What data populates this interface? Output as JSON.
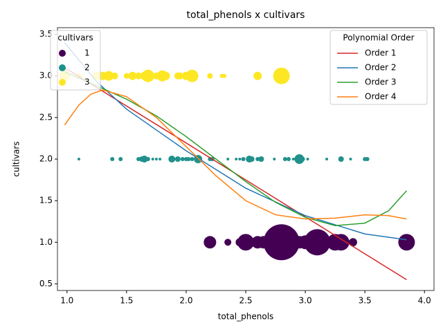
{
  "chart_data": {
    "type": "scatter",
    "title": "total_phenols x cultivars",
    "xlabel": "total_phenols",
    "ylabel": "cultivars",
    "xlim": [
      0.92,
      4.08
    ],
    "ylim": [
      0.42,
      3.58
    ],
    "xticks": [
      {
        "value": 1,
        "label": "1.0"
      },
      {
        "value": 1.5,
        "label": "1.5"
      },
      {
        "value": 2,
        "label": "2.0"
      },
      {
        "value": 2.5,
        "label": "2.5"
      },
      {
        "value": 3,
        "label": "3.0"
      },
      {
        "value": 3.5,
        "label": "3.5"
      },
      {
        "value": 4,
        "label": "4.0"
      }
    ],
    "yticks": [
      {
        "value": 0.5,
        "label": "0.5"
      },
      {
        "value": 1,
        "label": "1.0"
      },
      {
        "value": 1.5,
        "label": "1.5"
      },
      {
        "value": 2,
        "label": "2.0"
      },
      {
        "value": 2.5,
        "label": "2.5"
      },
      {
        "value": 3,
        "label": "3.0"
      },
      {
        "value": 3.5,
        "label": "3.5"
      }
    ],
    "legend_title": "cultivars",
    "series": [
      {
        "name": "1",
        "color": "#440154",
        "x": [
          2.2,
          2.35,
          2.45,
          2.5,
          2.6,
          2.65,
          2.8,
          2.95,
          3.0,
          3.1,
          3.15,
          3.25,
          3.3,
          3.4,
          3.85
        ],
        "values": [
          1,
          1,
          1,
          1,
          1,
          1,
          1,
          1,
          1,
          1,
          1,
          1,
          1,
          1,
          1
        ],
        "sizes": [
          81,
          25,
          36,
          144,
          81,
          81,
          676,
          81,
          100,
          361,
          100,
          144,
          144,
          36,
          144
        ]
      },
      {
        "name": "2",
        "color": "#21918c",
        "x": [
          1.1,
          1.38,
          1.45,
          1.6,
          1.63,
          1.65,
          1.68,
          1.72,
          1.75,
          1.78,
          1.88,
          1.93,
          1.97,
          2.0,
          2.02,
          2.05,
          2.1,
          2.2,
          2.22,
          2.35,
          2.42,
          2.45,
          2.48,
          2.53,
          2.55,
          2.6,
          2.63,
          2.74,
          2.83,
          2.86,
          2.9,
          2.95,
          2.98,
          3.02,
          3.18,
          3.3,
          3.38,
          3.5,
          3.52
        ],
        "values": [
          2,
          2,
          2,
          2,
          2,
          2,
          2,
          2,
          2,
          2,
          2,
          2,
          2,
          2,
          2,
          2,
          2,
          2,
          2,
          2,
          2,
          2,
          2,
          2,
          2,
          2,
          2,
          2,
          2,
          2,
          2,
          2,
          2,
          2,
          2,
          2,
          2,
          2,
          2
        ],
        "sizes": [
          4,
          9,
          9,
          9,
          16,
          25,
          9,
          4,
          4,
          4,
          25,
          16,
          9,
          9,
          9,
          9,
          36,
          9,
          9,
          4,
          4,
          4,
          9,
          25,
          16,
          9,
          16,
          4,
          9,
          9,
          4,
          49,
          9,
          4,
          4,
          16,
          4,
          9,
          9
        ]
      },
      {
        "name": "3",
        "color": "#fde725",
        "x": [
          0.98,
          1.1,
          1.25,
          1.3,
          1.35,
          1.4,
          1.5,
          1.55,
          1.6,
          1.65,
          1.68,
          1.75,
          1.8,
          1.83,
          1.93,
          1.95,
          2.0,
          2.05,
          2.2,
          2.3,
          2.32,
          2.6,
          2.8
        ],
        "values": [
          3,
          3,
          3,
          3,
          3,
          3,
          3,
          3,
          3,
          3,
          3,
          3,
          3,
          3,
          3,
          3,
          3,
          3,
          3,
          3,
          3,
          3,
          3
        ],
        "sizes": [
          64,
          16,
          36,
          36,
          49,
          25,
          16,
          36,
          25,
          36,
          81,
          25,
          64,
          36,
          25,
          25,
          36,
          81,
          16,
          9,
          9,
          36,
          144
        ]
      }
    ],
    "lines_legend_title": "Polynomial Order",
    "lines": [
      {
        "name": "Order 1",
        "color": "#d62728",
        "x": [
          0.98,
          3.85
        ],
        "values": [
          3.1,
          0.55
        ]
      },
      {
        "name": "Order 2",
        "color": "#1f77b4",
        "x": [
          0.98,
          1.25,
          1.5,
          2.0,
          2.5,
          3.0,
          3.5,
          3.85
        ],
        "values": [
          3.4,
          2.93,
          2.6,
          2.1,
          1.65,
          1.32,
          1.1,
          1.03
        ]
      },
      {
        "name": "Order 3",
        "color": "#2ca02c",
        "x": [
          0.98,
          1.25,
          1.5,
          1.75,
          2.0,
          2.25,
          2.5,
          2.75,
          3.0,
          3.25,
          3.5,
          3.7,
          3.85
        ],
        "values": [
          3.05,
          2.88,
          2.72,
          2.52,
          2.27,
          2.0,
          1.73,
          1.48,
          1.3,
          1.2,
          1.23,
          1.38,
          1.62
        ]
      },
      {
        "name": "Order 4",
        "color": "#ff7f0e",
        "x": [
          0.98,
          1.1,
          1.2,
          1.3,
          1.5,
          1.75,
          2.0,
          2.25,
          2.5,
          2.75,
          3.0,
          3.25,
          3.5,
          3.7,
          3.85
        ],
        "values": [
          2.41,
          2.65,
          2.78,
          2.83,
          2.75,
          2.5,
          2.15,
          1.8,
          1.5,
          1.33,
          1.28,
          1.29,
          1.33,
          1.32,
          1.28
        ]
      }
    ]
  }
}
